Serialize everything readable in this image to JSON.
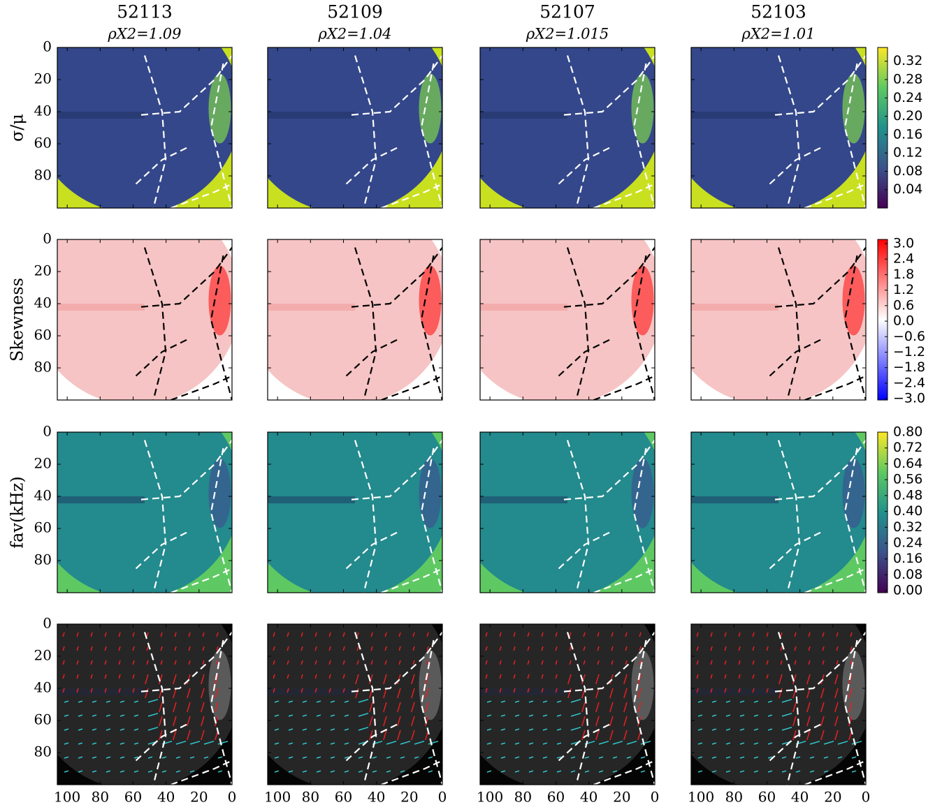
{
  "columns": [
    {
      "title": "52113",
      "subtitle": "ρX2=1.09"
    },
    {
      "title": "52109",
      "subtitle": "ρX2=1.04"
    },
    {
      "title": "52107",
      "subtitle": "ρX2=1.015"
    },
    {
      "title": "52103",
      "subtitle": "ρX2=1.01"
    }
  ],
  "rows": [
    {
      "label": "σ/μ",
      "colorbar": {
        "lim": [
          0,
          0.35
        ],
        "ticks": [
          0.04,
          0.08,
          0.12,
          0.16,
          {
            "value": 0.2,
            "label": "0.20"
          },
          0.24,
          0.28,
          0.32
        ]
      }
    },
    {
      "label": "Skewness",
      "colorbar": {
        "lim": [
          -3.05,
          3.16
        ],
        "ticks": [
          {
            "value": 3,
            "label": "3.0"
          },
          2.4,
          1.8,
          1.2,
          0.6,
          {
            "value": 0,
            "label": "0.0"
          },
          {
            "value": -0.6,
            "label": "−0.6"
          },
          {
            "value": -1.2,
            "label": "−1.2"
          },
          {
            "value": -1.8,
            "label": "−1.8"
          },
          {
            "value": -2.4,
            "label": "−2.4"
          },
          {
            "value": -3,
            "label": "−3.0"
          }
        ]
      }
    },
    {
      "label": "fav(kHz)",
      "colorbar": {
        "lim": [
          -0.01,
          0.8
        ],
        "ticks": [
          {
            "value": 0,
            "label": "0.00"
          },
          0.08,
          0.16,
          0.24,
          0.32,
          {
            "value": 0.4,
            "label": "0.40"
          },
          0.48,
          0.56,
          0.64,
          0.72,
          {
            "value": 0.8,
            "label": "0.80"
          }
        ]
      }
    }
  ],
  "yaxis": {
    "lim": [
      0,
      100
    ],
    "ticks": [
      0,
      20,
      40,
      60,
      80
    ]
  },
  "xaxis": {
    "lim": [
      106,
      0
    ],
    "ticks": [
      100,
      80,
      60,
      40,
      20,
      0
    ]
  }
}
